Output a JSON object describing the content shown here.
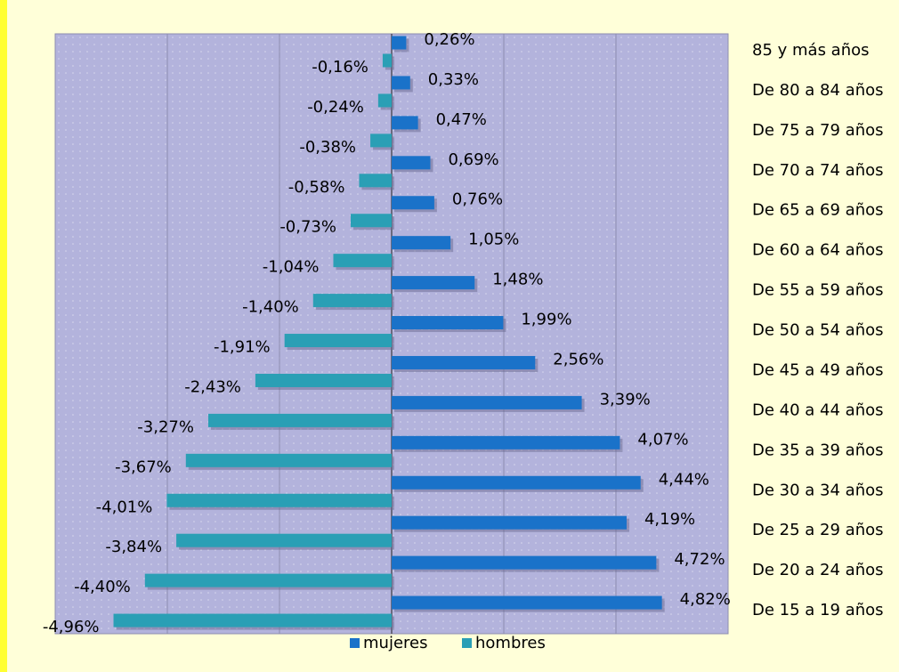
{
  "chart_data": {
    "type": "bar",
    "orientation": "horizontal",
    "categories": [
      "85 y más años",
      "De 80 a 84 años",
      "De 75 a 79 años",
      "De 70 a 74 años",
      "De 65 a 69 años",
      "De 60 a 64 años",
      "De 55 a 59 años",
      "De 50 a 54 años",
      "De 45 a 49 años",
      "De 40 a 44 años",
      "De 35 a 39 años",
      "De 30 a 34 años",
      "De 25 a 29 años",
      "De 20 a 24 años",
      "De 15 a 19 años"
    ],
    "series": [
      {
        "name": "mujeres",
        "color": "#1a72c9",
        "values": [
          0.26,
          0.33,
          0.47,
          0.69,
          0.76,
          1.05,
          1.48,
          1.99,
          2.56,
          3.39,
          4.07,
          4.44,
          4.19,
          4.72,
          4.82
        ],
        "value_labels": [
          "0,26%",
          "0,33%",
          "0,47%",
          "0,69%",
          "0,76%",
          "1,05%",
          "1,48%",
          "1,99%",
          "2,56%",
          "3,39%",
          "4,07%",
          "4,44%",
          "4,19%",
          "4,72%",
          "4,82%"
        ]
      },
      {
        "name": "hombres",
        "color": "#2a9fb5",
        "values": [
          -0.16,
          -0.24,
          -0.38,
          -0.58,
          -0.73,
          -1.04,
          -1.4,
          -1.91,
          -2.43,
          -3.27,
          -3.67,
          -4.01,
          -3.84,
          -4.4,
          -4.96
        ],
        "value_labels": [
          "-0,16%",
          "-0,24%",
          "-0,38%",
          "-0,58%",
          "-0,73%",
          "-1,04%",
          "-1,40%",
          "-1,91%",
          "-2,43%",
          "-3,27%",
          "-3,67%",
          "-4,01%",
          "-3,84%",
          "-4,40%",
          "-4,96%"
        ]
      }
    ],
    "xlim": [
      -6,
      6
    ],
    "xticks": [
      -6,
      -4,
      -2,
      0,
      2,
      4,
      6
    ],
    "grid": true,
    "legend": "bottom"
  }
}
